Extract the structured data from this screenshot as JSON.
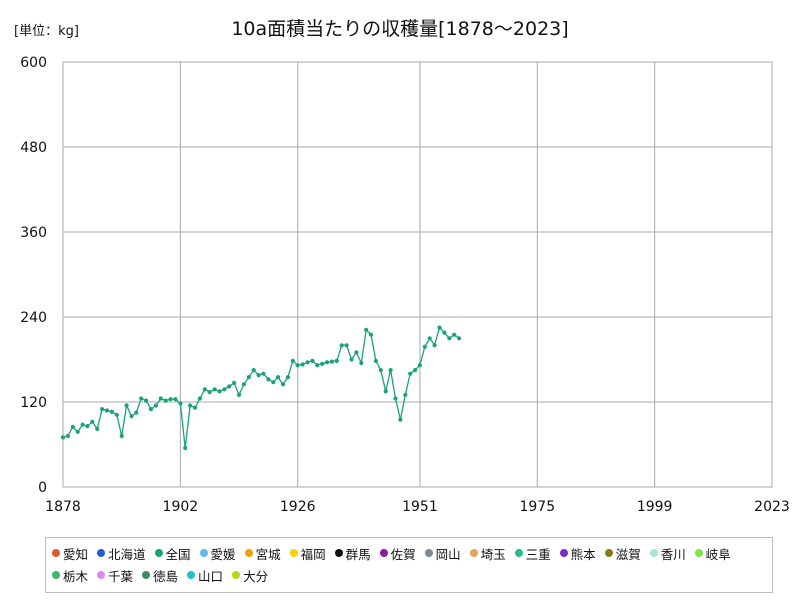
{
  "header": {
    "unit": "[単位：kg]",
    "title": "10a面積当たりの収穫量[1878～2023]"
  },
  "chart_data": {
    "type": "line",
    "title": "10a面積当たりの収穫量[1878～2023]",
    "ylabel": "",
    "xlabel": "",
    "unit": "[単位：kg]",
    "xlim": [
      1878,
      2023
    ],
    "ylim": [
      0,
      600
    ],
    "x_ticks": [
      "1878",
      "1902",
      "1926",
      "1951",
      "1975",
      "1999",
      "2023"
    ],
    "y_ticks": [
      "0",
      "120",
      "240",
      "360",
      "480",
      "600"
    ],
    "grid": true,
    "legend_position": "bottom",
    "series": [
      {
        "name": "愛知",
        "color": "#e4572e"
      },
      {
        "name": "北海道",
        "color": "#1f5fd6"
      },
      {
        "name": "全国",
        "color": "#1aa37a",
        "years": [
          1878,
          1879,
          1880,
          1881,
          1882,
          1883,
          1884,
          1885,
          1886,
          1887,
          1888,
          1889,
          1890,
          1891,
          1892,
          1893,
          1894,
          1895,
          1896,
          1897,
          1898,
          1899,
          1900,
          1901,
          1902,
          1903,
          1904,
          1905,
          1906,
          1907,
          1908,
          1909,
          1910,
          1911,
          1912,
          1913,
          1914,
          1915,
          1916,
          1917,
          1918,
          1919,
          1920,
          1921,
          1922,
          1923,
          1924,
          1925,
          1926,
          1927,
          1928,
          1929,
          1930,
          1931,
          1932,
          1933,
          1934,
          1935,
          1936,
          1937,
          1938,
          1939,
          1940,
          1941,
          1942,
          1943,
          1944,
          1945,
          1946,
          1947,
          1948,
          1949,
          1950,
          1951,
          1952,
          1953,
          1954,
          1955,
          1956,
          1957,
          1958,
          1959
        ],
        "values": [
          70,
          72,
          85,
          78,
          88,
          86,
          92,
          82,
          110,
          108,
          106,
          102,
          72,
          115,
          100,
          105,
          125,
          122,
          110,
          115,
          125,
          122,
          124,
          124,
          118,
          55,
          115,
          112,
          125,
          138,
          134,
          138,
          135,
          138,
          142,
          147,
          130,
          145,
          155,
          165,
          158,
          160,
          152,
          148,
          155,
          145,
          155,
          178,
          172,
          173,
          176,
          178,
          172,
          174,
          176,
          177,
          178,
          200,
          200,
          180,
          190,
          175,
          222,
          215,
          178,
          165,
          135,
          165,
          125,
          95,
          130,
          160,
          165,
          172,
          198,
          210,
          200,
          225,
          218,
          210,
          215,
          210
        ]
      },
      {
        "name": "愛媛",
        "color": "#5bbbe8"
      },
      {
        "name": "宮城",
        "color": "#f0a202"
      },
      {
        "name": "福岡",
        "color": "#f7d400"
      },
      {
        "name": "群馬",
        "color": "#111111"
      },
      {
        "name": "佐賀",
        "color": "#8b1c9e"
      },
      {
        "name": "岡山",
        "color": "#7d8a99"
      },
      {
        "name": "埼玉",
        "color": "#e6a35a"
      },
      {
        "name": "三重",
        "color": "#2dbd8c"
      },
      {
        "name": "熊本",
        "color": "#7b2bc9"
      },
      {
        "name": "滋賀",
        "color": "#8a7a1e"
      },
      {
        "name": "香川",
        "color": "#a5e6d2"
      },
      {
        "name": "岐阜",
        "color": "#7ce34b"
      },
      {
        "name": "栃木",
        "color": "#3bb56a"
      },
      {
        "name": "千葉",
        "color": "#d98bf0"
      },
      {
        "name": "徳島",
        "color": "#3f8a5e"
      },
      {
        "name": "山口",
        "color": "#1fc2c7"
      },
      {
        "name": "大分",
        "color": "#b6d617"
      }
    ]
  }
}
